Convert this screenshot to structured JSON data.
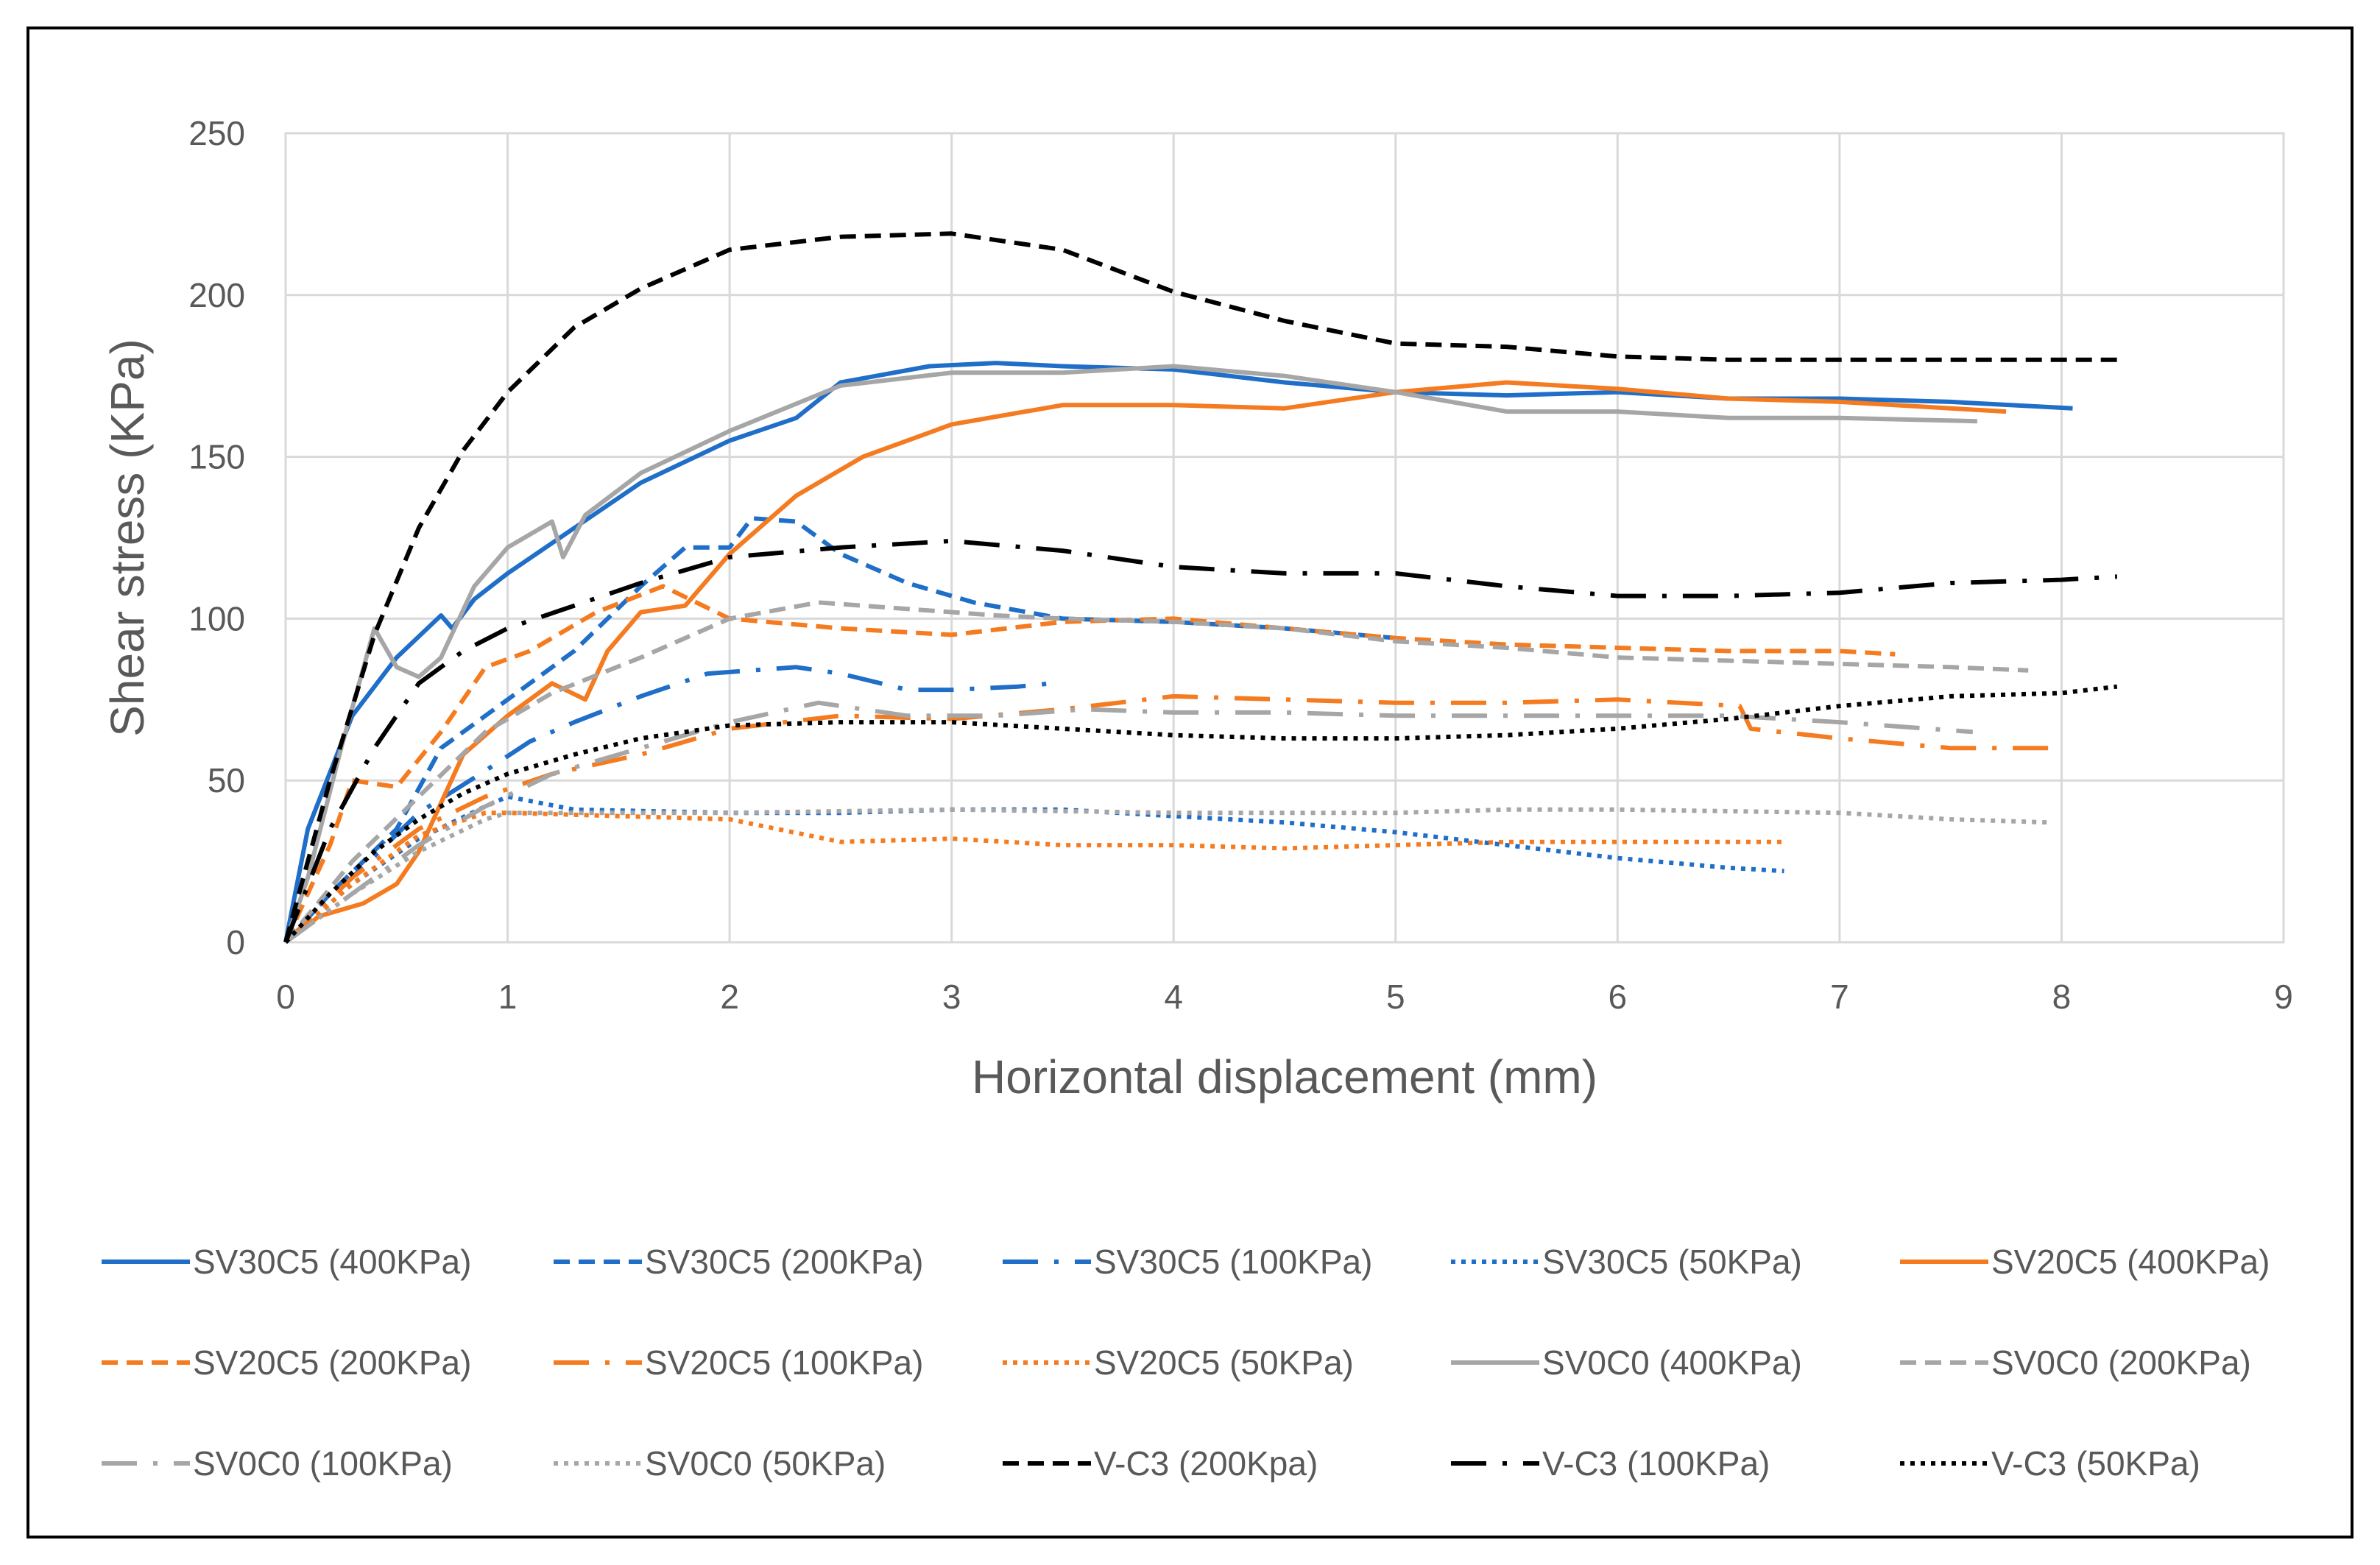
{
  "chart_data": {
    "type": "line",
    "title": "",
    "xlabel": "Horizontal displacement (mm)",
    "ylabel": "Shear stress (KPa)",
    "xlim": [
      0,
      9
    ],
    "ylim": [
      0,
      250
    ],
    "xticks": [
      0,
      1,
      2,
      3,
      4,
      5,
      6,
      7,
      8,
      9
    ],
    "yticks": [
      0,
      50,
      100,
      150,
      200,
      250
    ],
    "grid": true,
    "legend": "bottom",
    "series": [
      {
        "name": "SV30C5 (400KPa)",
        "color": "#1f6ec8",
        "dash": "solid",
        "x": [
          0,
          0.1,
          0.3,
          0.5,
          0.7,
          0.75,
          0.85,
          1.0,
          1.3,
          1.6,
          2.0,
          2.3,
          2.5,
          2.9,
          3.2,
          3.5,
          4.0,
          4.5,
          5.0,
          5.5,
          6.0,
          6.5,
          7.0,
          7.5,
          8.05
        ],
        "y": [
          0,
          35,
          70,
          88,
          101,
          97,
          106,
          114,
          128,
          142,
          155,
          162,
          173,
          178,
          179,
          178,
          177,
          173,
          170,
          169,
          170,
          168,
          168,
          167,
          165
        ]
      },
      {
        "name": "SV30C5 (200KPa)",
        "color": "#1f6ec8",
        "dash": "dash",
        "x": [
          0,
          0.2,
          0.5,
          0.7,
          1.0,
          1.3,
          1.6,
          1.8,
          2.0,
          2.1,
          2.3,
          2.5,
          2.8,
          3.1,
          3.5,
          4.0,
          4.5,
          5.0
        ],
        "y": [
          0,
          15,
          35,
          60,
          75,
          90,
          110,
          122,
          122,
          131,
          130,
          120,
          111,
          105,
          100,
          99,
          97,
          94
        ]
      },
      {
        "name": "SV30C5 (100KPa)",
        "color": "#1f6ec8",
        "dash": "dashdot",
        "x": [
          0,
          0.3,
          0.6,
          0.9,
          1.1,
          1.3,
          1.6,
          1.9,
          2.1,
          2.3,
          2.5,
          2.8,
          3.0,
          3.3,
          3.45
        ],
        "y": [
          0,
          20,
          40,
          53,
          62,
          68,
          76,
          83,
          84,
          85,
          83,
          78,
          78,
          79,
          80
        ]
      },
      {
        "name": "SV30C5 (50KPa)",
        "color": "#1f6ec8",
        "dash": "dot",
        "x": [
          0,
          0.3,
          0.6,
          0.9,
          1.0,
          1.3,
          2.0,
          2.5,
          3.0,
          3.5,
          4.0,
          4.5,
          5.0,
          5.5,
          6.0,
          6.5,
          6.75
        ],
        "y": [
          0,
          18,
          32,
          42,
          45,
          41,
          40,
          40,
          41,
          41,
          39,
          37,
          34,
          30,
          26,
          23,
          22
        ]
      },
      {
        "name": "SV20C5 (400KPa)",
        "color": "#f47b20",
        "dash": "solid",
        "x": [
          0,
          0.15,
          0.35,
          0.5,
          0.6,
          0.8,
          1.0,
          1.2,
          1.35,
          1.45,
          1.6,
          1.8,
          2.0,
          2.3,
          2.6,
          3.0,
          3.5,
          4.0,
          4.5,
          5.0,
          5.5,
          6.0,
          6.5,
          7.0,
          7.5,
          7.75
        ],
        "y": [
          0,
          8,
          12,
          18,
          28,
          58,
          70,
          80,
          75,
          90,
          102,
          104,
          120,
          138,
          150,
          160,
          166,
          166,
          165,
          170,
          173,
          171,
          168,
          167,
          165,
          164
        ]
      },
      {
        "name": "SV20C5 (200KPa)",
        "color": "#f47b20",
        "dash": "dash",
        "x": [
          0,
          0.2,
          0.3,
          0.5,
          0.7,
          0.9,
          1.1,
          1.4,
          1.7,
          2.0,
          2.5,
          3.0,
          3.5,
          4.0,
          4.5,
          5.0,
          5.5,
          6.0,
          6.5,
          7.0,
          7.25
        ],
        "y": [
          0,
          30,
          50,
          48,
          65,
          85,
          90,
          102,
          110,
          100,
          97,
          95,
          99,
          100,
          97,
          94,
          92,
          91,
          90,
          90,
          89
        ]
      },
      {
        "name": "SV20C5 (100KPa)",
        "color": "#f47b20",
        "dash": "dashdot",
        "x": [
          0,
          0.3,
          0.6,
          0.9,
          1.2,
          1.6,
          2.0,
          2.5,
          3.0,
          3.5,
          4.0,
          4.5,
          5.0,
          5.5,
          6.0,
          6.55,
          6.6,
          7.0,
          7.5,
          7.95
        ],
        "y": [
          0,
          20,
          35,
          45,
          52,
          58,
          66,
          70,
          69,
          72,
          76,
          75,
          74,
          74,
          75,
          73,
          66,
          63,
          60,
          60
        ]
      },
      {
        "name": "SV20C5 (50KPa)",
        "color": "#f47b20",
        "dash": "dot",
        "x": [
          0,
          0.3,
          0.6,
          0.9,
          1.0,
          1.5,
          2.0,
          2.5,
          3.0,
          3.5,
          4.0,
          4.5,
          5.0,
          5.5,
          6.0,
          6.5,
          6.75
        ],
        "y": [
          0,
          18,
          33,
          40,
          40,
          39,
          38,
          31,
          32,
          30,
          30,
          29,
          30,
          31,
          31,
          31,
          31
        ]
      },
      {
        "name": "SV0C0 (400KPa)",
        "color": "#a6a6a6",
        "dash": "solid",
        "x": [
          0,
          0.1,
          0.25,
          0.4,
          0.5,
          0.6,
          0.7,
          0.85,
          1.0,
          1.2,
          1.25,
          1.35,
          1.6,
          2.0,
          2.5,
          3.0,
          3.5,
          4.0,
          4.5,
          5.0,
          5.5,
          6.0,
          6.5,
          7.0,
          7.62
        ],
        "y": [
          0,
          20,
          60,
          97,
          85,
          82,
          88,
          110,
          122,
          130,
          119,
          132,
          145,
          158,
          172,
          176,
          176,
          178,
          175,
          170,
          164,
          164,
          162,
          162,
          161
        ]
      },
      {
        "name": "SV0C0 (200KPa)",
        "color": "#a6a6a6",
        "dash": "dash",
        "x": [
          0,
          0.3,
          0.6,
          0.9,
          1.2,
          1.6,
          2.0,
          2.4,
          2.8,
          3.2,
          3.5,
          4.0,
          4.5,
          5.0,
          5.5,
          6.0,
          6.5,
          7.0,
          7.5,
          7.85
        ],
        "y": [
          0,
          25,
          45,
          65,
          77,
          88,
          100,
          105,
          103,
          101,
          100,
          99,
          97,
          93,
          91,
          88,
          87,
          86,
          85,
          84
        ]
      },
      {
        "name": "SV0C0 (100KPa)",
        "color": "#a6a6a6",
        "dash": "dashdot",
        "x": [
          0,
          0.3,
          0.6,
          0.9,
          1.2,
          1.6,
          2.0,
          2.4,
          2.8,
          3.2,
          3.6,
          4.0,
          4.5,
          5.0,
          5.5,
          6.0,
          6.5,
          7.0,
          7.6
        ],
        "y": [
          0,
          15,
          30,
          42,
          52,
          60,
          68,
          74,
          70,
          70,
          72,
          71,
          71,
          70,
          70,
          70,
          70,
          68,
          65
        ]
      },
      {
        "name": "SV0C0 (50KPa)",
        "color": "#a6a6a6",
        "dash": "dot",
        "x": [
          0,
          0.3,
          0.6,
          0.9,
          1.0,
          1.5,
          2.0,
          3.0,
          4.0,
          5.0,
          5.5,
          6.0,
          7.0,
          7.5,
          7.95
        ],
        "y": [
          0,
          15,
          28,
          38,
          40,
          40,
          40,
          41,
          40,
          40,
          41,
          41,
          40,
          38,
          37
        ]
      },
      {
        "name": "V-C3 (200Kpa)",
        "color": "#000000",
        "dash": "dash",
        "x": [
          0,
          0.2,
          0.4,
          0.6,
          0.8,
          1.0,
          1.3,
          1.6,
          2.0,
          2.5,
          3.0,
          3.5,
          4.0,
          4.5,
          5.0,
          5.5,
          6.0,
          6.5,
          7.0,
          7.5,
          8.0,
          8.25
        ],
        "y": [
          0,
          50,
          95,
          128,
          152,
          170,
          190,
          202,
          214,
          218,
          219,
          214,
          201,
          192,
          185,
          184,
          181,
          180,
          180,
          180,
          180,
          180
        ]
      },
      {
        "name": "V-C3 (100KPa)",
        "color": "#000000",
        "dash": "dashdot",
        "x": [
          0,
          0.2,
          0.4,
          0.6,
          0.8,
          1.0,
          1.3,
          1.6,
          2.0,
          2.5,
          3.0,
          3.5,
          4.0,
          4.5,
          5.0,
          5.5,
          6.0,
          6.5,
          7.0,
          7.5,
          8.0,
          8.25
        ],
        "y": [
          0,
          35,
          60,
          80,
          90,
          97,
          104,
          111,
          119,
          122,
          124,
          121,
          116,
          114,
          114,
          110,
          107,
          107,
          108,
          111,
          112,
          113
        ]
      },
      {
        "name": "V-C3 (50KPa)",
        "color": "#000000",
        "dash": "dot",
        "x": [
          0,
          0.2,
          0.4,
          0.6,
          0.8,
          1.0,
          1.3,
          1.6,
          2.0,
          2.5,
          3.0,
          3.5,
          4.0,
          4.5,
          5.0,
          5.5,
          6.0,
          6.5,
          7.0,
          7.5,
          8.0,
          8.25
        ],
        "y": [
          0,
          15,
          28,
          38,
          46,
          52,
          58,
          63,
          67,
          68,
          68,
          66,
          64,
          63,
          63,
          64,
          66,
          69,
          73,
          76,
          77,
          79
        ]
      }
    ]
  }
}
